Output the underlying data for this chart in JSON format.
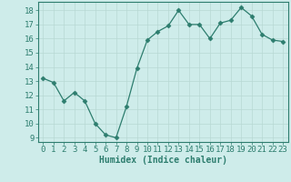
{
  "x": [
    0,
    1,
    2,
    3,
    4,
    5,
    6,
    7,
    8,
    9,
    10,
    11,
    12,
    13,
    14,
    15,
    16,
    17,
    18,
    19,
    20,
    21,
    22,
    23
  ],
  "y": [
    13.2,
    12.9,
    11.6,
    12.2,
    11.6,
    10.0,
    9.2,
    9.0,
    11.2,
    13.9,
    15.9,
    16.5,
    16.9,
    18.0,
    17.0,
    17.0,
    16.0,
    17.1,
    17.3,
    18.2,
    17.6,
    16.3,
    15.9,
    15.8
  ],
  "line_color": "#2d7d6e",
  "marker": "D",
  "marker_size": 2.5,
  "bg_color": "#ceecea",
  "grid_color": "#b8d8d4",
  "axes_color": "#2d7d6e",
  "xlabel": "Humidex (Indice chaleur)",
  "xlabel_fontsize": 7,
  "ylabel_ticks": [
    9,
    10,
    11,
    12,
    13,
    14,
    15,
    16,
    17,
    18
  ],
  "xlim": [
    -0.5,
    23.5
  ],
  "ylim": [
    8.7,
    18.6
  ],
  "xticks": [
    0,
    1,
    2,
    3,
    4,
    5,
    6,
    7,
    8,
    9,
    10,
    11,
    12,
    13,
    14,
    15,
    16,
    17,
    18,
    19,
    20,
    21,
    22,
    23
  ],
  "tick_fontsize": 6.5
}
